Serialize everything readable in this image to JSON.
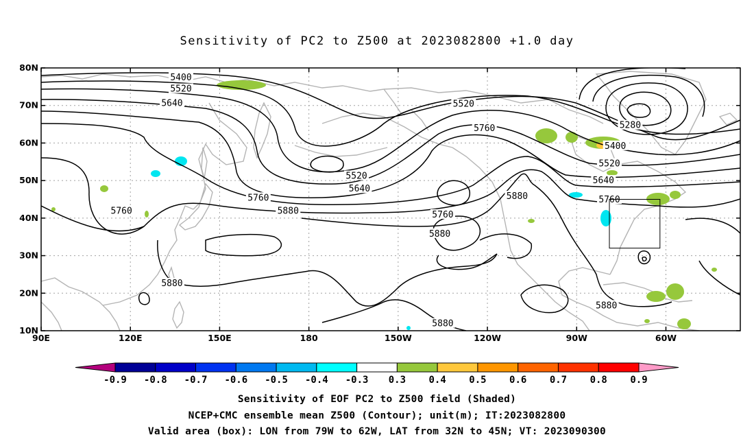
{
  "title": "Sensitivity of PC2 to Z500 at 2023082800 +1.0 day",
  "map": {
    "extent": {
      "lon_min": 90,
      "lon_max": 325,
      "lat_min": 10,
      "lat_max": 80
    },
    "lat_ticks": [
      {
        "lat": 80,
        "label": "80N"
      },
      {
        "lat": 70,
        "label": "70N"
      },
      {
        "lat": 60,
        "label": "60N"
      },
      {
        "lat": 50,
        "label": "50N"
      },
      {
        "lat": 40,
        "label": "40N"
      },
      {
        "lat": 30,
        "label": "30N"
      },
      {
        "lat": 20,
        "label": "20N"
      },
      {
        "lat": 10,
        "label": "10N"
      }
    ],
    "lon_ticks": [
      {
        "lon": 90,
        "label": "90E"
      },
      {
        "lon": 120,
        "label": "120E"
      },
      {
        "lon": 150,
        "label": "150E"
      },
      {
        "lon": 180,
        "label": "180"
      },
      {
        "lon": 210,
        "label": "150W"
      },
      {
        "lon": 240,
        "label": "120W"
      },
      {
        "lon": 270,
        "label": "90W"
      },
      {
        "lon": 300,
        "label": "60W"
      }
    ],
    "grid": "dotted",
    "contour_interval_m": 120,
    "contour_labels": [
      {
        "text": "5400",
        "lon": 137,
        "lat": 77.4
      },
      {
        "text": "5520",
        "lon": 137,
        "lat": 74.4
      },
      {
        "text": "5640",
        "lon": 134,
        "lat": 70.6
      },
      {
        "text": "5760",
        "lon": 117,
        "lat": 41.9
      },
      {
        "text": "5880",
        "lon": 134,
        "lat": 22.6
      },
      {
        "text": "5760",
        "lon": 163,
        "lat": 45.4
      },
      {
        "text": "5880",
        "lon": 173,
        "lat": 41.9
      },
      {
        "text": "5520",
        "lon": 196,
        "lat": 51.2
      },
      {
        "text": "5640",
        "lon": 197,
        "lat": 47.8
      },
      {
        "text": "5520",
        "lon": 232,
        "lat": 70.4
      },
      {
        "text": "5760",
        "lon": 239,
        "lat": 63.9
      },
      {
        "text": "5760",
        "lon": 225,
        "lat": 40.9
      },
      {
        "text": "5880",
        "lon": 224,
        "lat": 35.8
      },
      {
        "text": "5880",
        "lon": 250,
        "lat": 45.8
      },
      {
        "text": "5880",
        "lon": 225,
        "lat": 11.9
      },
      {
        "text": "5880",
        "lon": 280,
        "lat": 16.7
      },
      {
        "text": "5280",
        "lon": 288,
        "lat": 64.7
      },
      {
        "text": "5400",
        "lon": 283,
        "lat": 59.2
      },
      {
        "text": "5520",
        "lon": 281,
        "lat": 54.5
      },
      {
        "text": "5640",
        "lon": 279,
        "lat": 50.0
      },
      {
        "text": "5760",
        "lon": 281,
        "lat": 44.9
      }
    ],
    "valid_box": {
      "lon_west": 281,
      "lon_east": 298,
      "lat_south": 32,
      "lat_north": 45
    }
  },
  "colorbar": {
    "levels": [
      "-0.9",
      "-0.8",
      "-0.7",
      "-0.6",
      "-0.5",
      "-0.4",
      "-0.3",
      "0.3",
      "0.4",
      "0.5",
      "0.6",
      "0.7",
      "0.8",
      "0.9"
    ],
    "colors": [
      "#b4007d",
      "#000096",
      "#0000c8",
      "#0032f0",
      "#0078f0",
      "#00b9f0",
      "#00ffff",
      "#ffffff",
      "#96c83c",
      "#ffc83c",
      "#ff9600",
      "#ff6400",
      "#ff3200",
      "#ff0000",
      "#ff9bc8"
    ]
  },
  "shaded_colors": {
    "positive_03": "#96c83c",
    "positive_04": "#ffc83c",
    "negative_04": "#00ffff",
    "negative_03": "#00e6f0"
  },
  "caption": {
    "line1": "Sensitivity of EOF PC2 to Z500 field (Shaded)",
    "line2": "NCEP+CMC ensemble mean Z500 (Contour); unit(m); IT:2023082800",
    "line3": "Valid area (box): LON from 79W to 62W, LAT from 32N to 45N; VT: 2023090300"
  }
}
